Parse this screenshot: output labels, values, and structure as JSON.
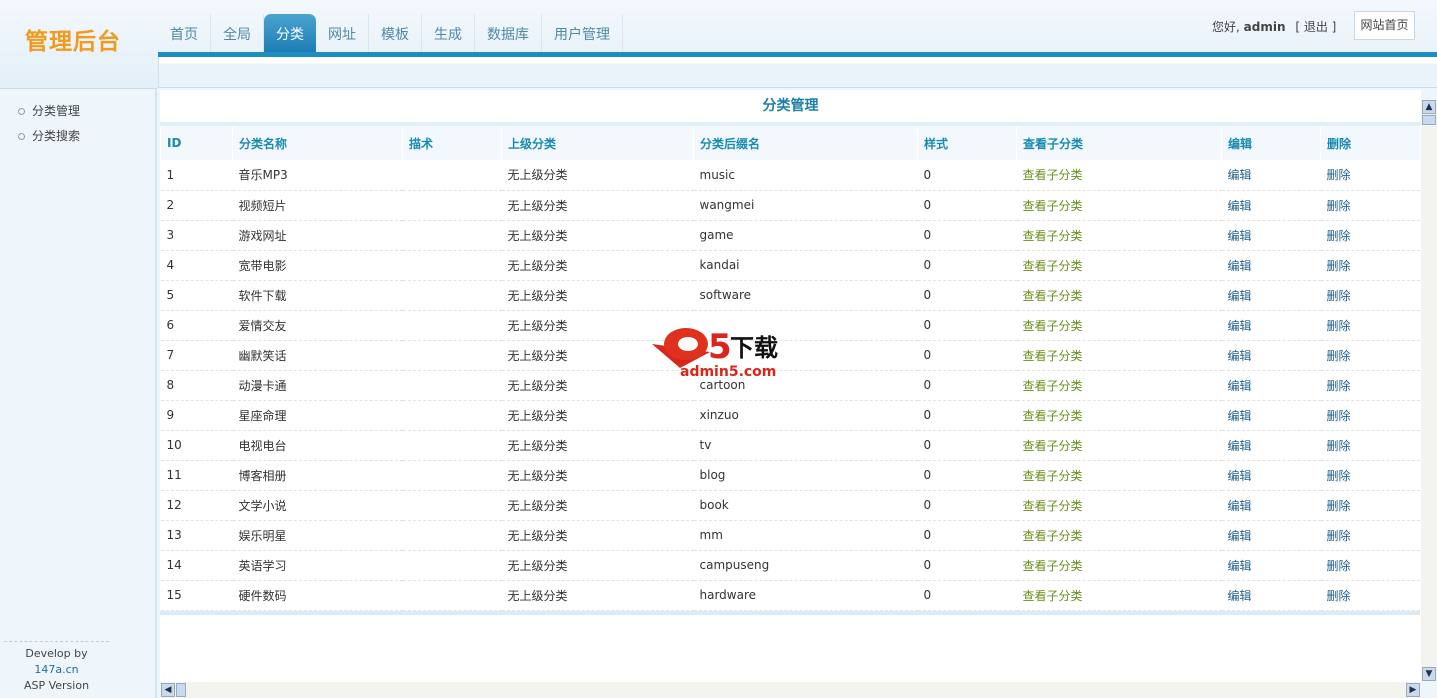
{
  "header": {
    "logo": "管理后台",
    "tabs": [
      "首页",
      "全局",
      "分类",
      "网址",
      "模板",
      "生成",
      "数据库",
      "用户管理"
    ],
    "active_tab": 2,
    "greeting": "您好,",
    "username": "admin",
    "logout": "[ 退出 ]",
    "site_home": "网站首页"
  },
  "sidebar": {
    "items": [
      "分类管理",
      "分类搜索"
    ],
    "footer_prefix": "Develop by ",
    "footer_link": "147a.cn",
    "footer_version": "ASP Version"
  },
  "main": {
    "title": "分类管理",
    "columns": [
      "ID",
      "分类名称",
      "描术",
      "上级分类",
      "分类后缀名",
      "样式",
      "查看子分类",
      "编辑",
      "删除"
    ],
    "rows": [
      [
        "1",
        "音乐MP3",
        "",
        "无上级分类",
        "music",
        "0",
        "查看子分类",
        "编辑",
        "删除"
      ],
      [
        "2",
        "视频短片",
        "",
        "无上级分类",
        "wangmei",
        "0",
        "查看子分类",
        "编辑",
        "删除"
      ],
      [
        "3",
        "游戏网址",
        "",
        "无上级分类",
        "game",
        "0",
        "查看子分类",
        "编辑",
        "删除"
      ],
      [
        "4",
        "宽带电影",
        "",
        "无上级分类",
        "kandai",
        "0",
        "查看子分类",
        "编辑",
        "删除"
      ],
      [
        "5",
        "软件下载",
        "",
        "无上级分类",
        "software",
        "0",
        "查看子分类",
        "编辑",
        "删除"
      ],
      [
        "6",
        "爱情交友",
        "",
        "无上级分类",
        "",
        "0",
        "查看子分类",
        "编辑",
        "删除"
      ],
      [
        "7",
        "幽默笑话",
        "",
        "无上级分类",
        "",
        "0",
        "查看子分类",
        "编辑",
        "删除"
      ],
      [
        "8",
        "动漫卡通",
        "",
        "无上级分类",
        "cartoon",
        "0",
        "查看子分类",
        "编辑",
        "删除"
      ],
      [
        "9",
        "星座命理",
        "",
        "无上级分类",
        "xinzuo",
        "0",
        "查看子分类",
        "编辑",
        "删除"
      ],
      [
        "10",
        "电视电台",
        "",
        "无上级分类",
        "tv",
        "0",
        "查看子分类",
        "编辑",
        "删除"
      ],
      [
        "11",
        "博客相册",
        "",
        "无上级分类",
        "blog",
        "0",
        "查看子分类",
        "编辑",
        "删除"
      ],
      [
        "12",
        "文学小说",
        "",
        "无上级分类",
        "book",
        "0",
        "查看子分类",
        "编辑",
        "删除"
      ],
      [
        "13",
        "娱乐明星",
        "",
        "无上级分类",
        "mm",
        "0",
        "查看子分类",
        "编辑",
        "删除"
      ],
      [
        "14",
        "英语学习",
        "",
        "无上级分类",
        "campuseng",
        "0",
        "查看子分类",
        "编辑",
        "删除"
      ],
      [
        "15",
        "硬件数码",
        "",
        "无上级分类",
        "hardware",
        "0",
        "查看子分类",
        "编辑",
        "删除"
      ]
    ]
  },
  "watermark": {
    "text": "a5下载",
    "url": "admin5.com"
  },
  "colors": {
    "accent": "#1d8cc0",
    "logo": "#f29a1e",
    "view_link": "#6a8f1a",
    "action_link": "#22618f",
    "header_text": "#1a8bb0"
  }
}
